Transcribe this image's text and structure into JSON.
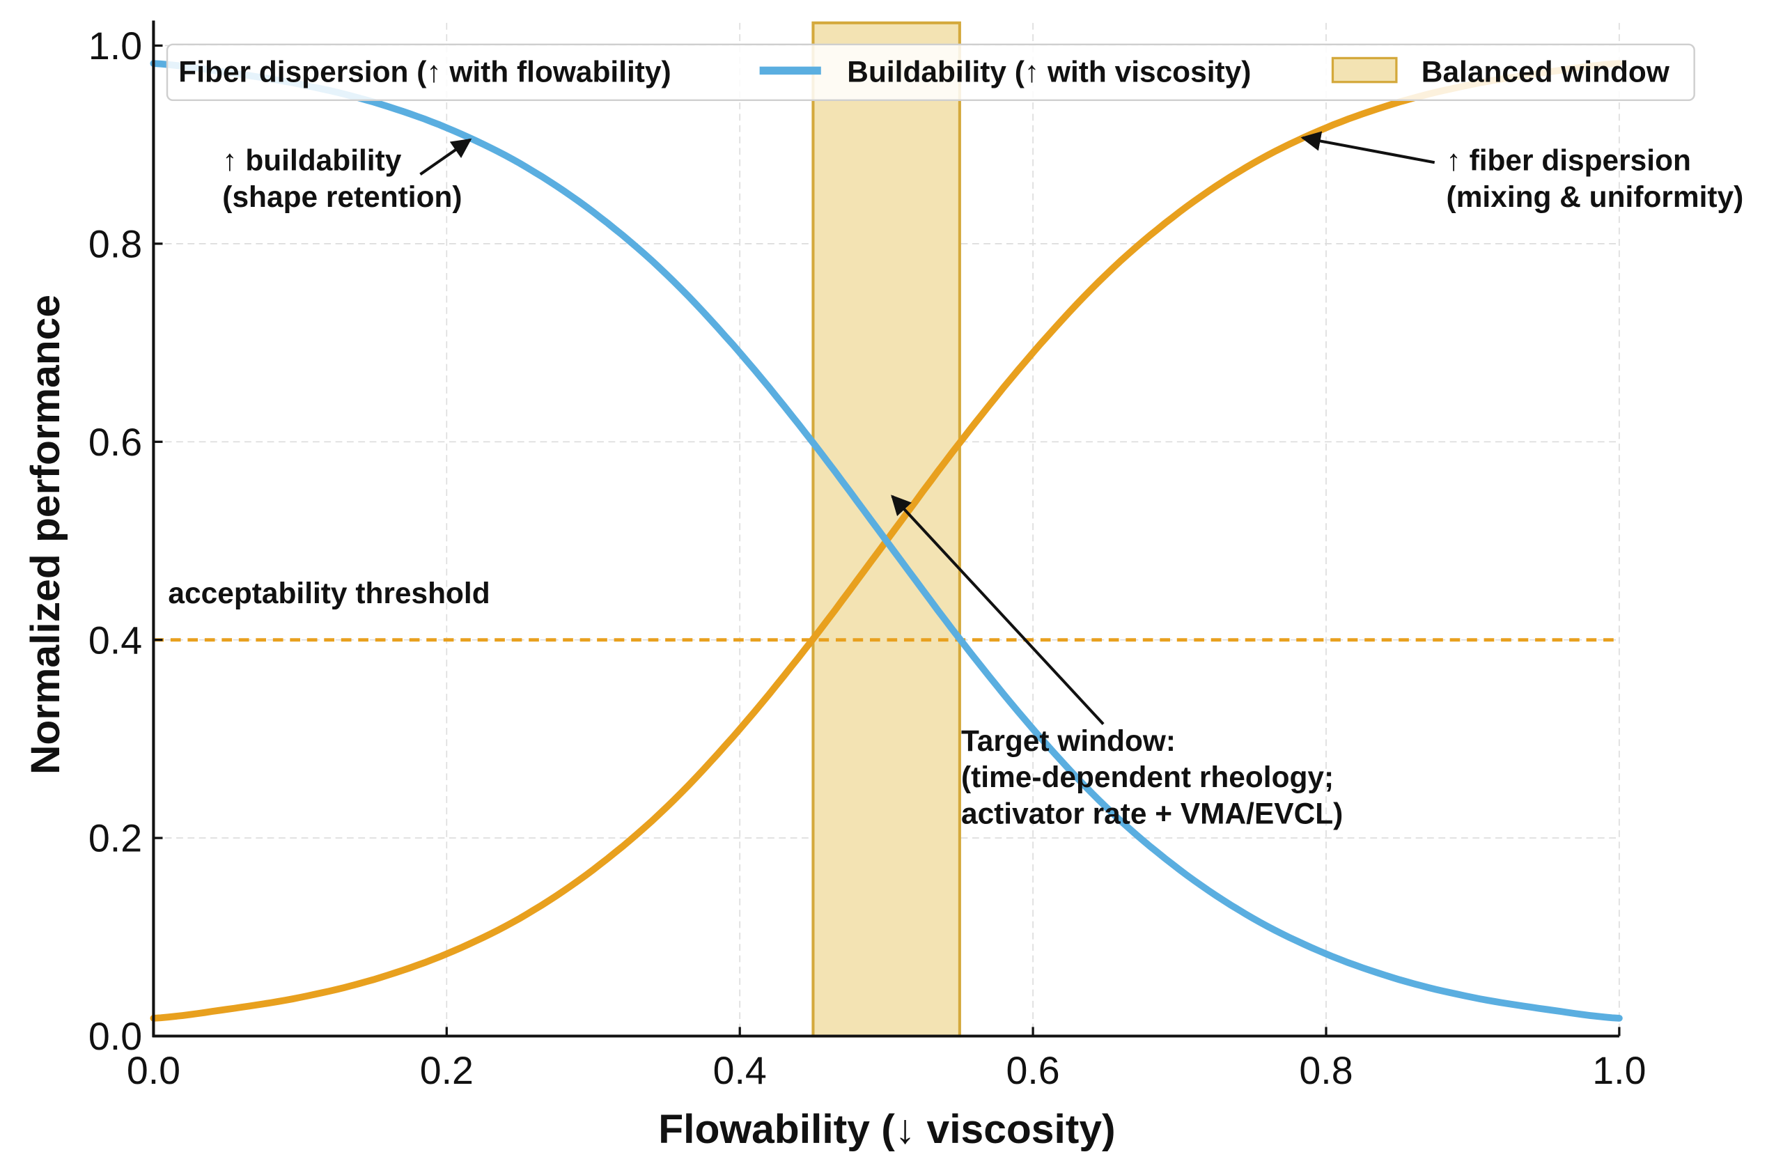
{
  "chart_data": {
    "type": "line",
    "xlabel": "Flowability (↓ viscosity)",
    "ylabel": "Normalized performance",
    "xlim": [
      0,
      1
    ],
    "ylim": [
      0,
      1
    ],
    "xticks": [
      "0.0",
      "0.2",
      "0.4",
      "0.6",
      "0.8",
      "1.0"
    ],
    "yticks": [
      "0.0",
      "0.2",
      "0.4",
      "0.6",
      "0.8",
      "1.0"
    ],
    "grid": true,
    "legend_position": "top",
    "x": [
      0,
      0.05,
      0.1,
      0.15,
      0.2,
      0.25,
      0.3,
      0.35,
      0.4,
      0.45,
      0.5,
      0.55,
      0.6,
      0.65,
      0.7,
      0.75,
      0.8,
      0.85,
      0.9,
      0.95,
      1.0
    ],
    "series": [
      {
        "name": "Fiber dispersion (↑ with flowability)",
        "color": "#e8a01e",
        "values": [
          0.018,
          0.027,
          0.039,
          0.057,
          0.083,
          0.119,
          0.168,
          0.231,
          0.31,
          0.401,
          0.5,
          0.599,
          0.69,
          0.769,
          0.832,
          0.881,
          0.917,
          0.943,
          0.961,
          0.973,
          0.982
        ]
      },
      {
        "name": "Buildability (↑ with viscosity)",
        "color": "#5aaee0",
        "values": [
          0.982,
          0.973,
          0.961,
          0.943,
          0.917,
          0.881,
          0.832,
          0.769,
          0.69,
          0.599,
          0.5,
          0.401,
          0.31,
          0.231,
          0.168,
          0.119,
          0.083,
          0.057,
          0.039,
          0.027,
          0.018
        ]
      }
    ],
    "balanced_window": {
      "name": "Balanced window",
      "x_range": [
        0.45,
        0.55
      ],
      "fill": "#f3e3b3",
      "edge": "#d4a93c"
    },
    "threshold": {
      "label": "acceptability threshold",
      "y": 0.4,
      "color": "#e8a01e"
    },
    "annotations": [
      {
        "lines": [
          "↑ buildability",
          "(shape retention)"
        ],
        "text_at": [
          0.047,
          0.874
        ],
        "arrow_from": [
          0.182,
          0.87
        ],
        "arrow_to": [
          0.216,
          0.905
        ]
      },
      {
        "lines": [
          "↑ fiber dispersion",
          "(mixing & uniformity)"
        ],
        "text_at": [
          0.882,
          0.874
        ],
        "arrow_from": [
          0.874,
          0.882
        ],
        "arrow_to": [
          0.784,
          0.907
        ]
      },
      {
        "lines": [
          "Target window:",
          "(time-dependent rheology;",
          "activator rate + VMA/EVCL)"
        ],
        "text_at": [
          0.551,
          0.288
        ],
        "arrow_from": [
          0.648,
          0.315
        ],
        "arrow_to": [
          0.504,
          0.545
        ]
      }
    ]
  }
}
